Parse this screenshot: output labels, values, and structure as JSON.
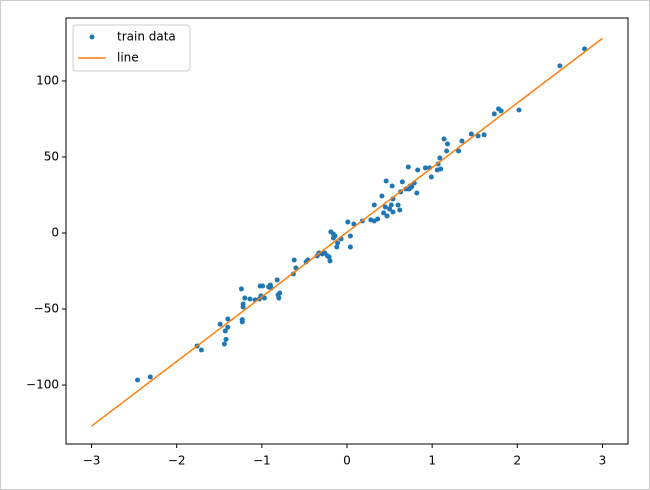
{
  "chart_data": {
    "type": "scatter",
    "series": [
      {
        "name": "train data",
        "type": "scatter",
        "color": "#1f77b4",
        "x": [
          -2.46,
          -2.31,
          -1.76,
          -1.71,
          -1.49,
          -1.44,
          -1.42,
          -1.43,
          -1.4,
          -1.4,
          -1.24,
          -1.23,
          -1.23,
          -1.22,
          -1.22,
          -1.2,
          -1.14,
          -1.08,
          -1.03,
          -1.02,
          -0.99,
          -1.01,
          -0.97,
          -0.92,
          -0.9,
          -0.89,
          -0.82,
          -0.81,
          -0.79,
          -0.8,
          -0.63,
          -0.62,
          -0.6,
          -0.48,
          -0.46,
          -0.35,
          -0.33,
          -0.29,
          -0.26,
          -0.23,
          -0.21,
          -0.2,
          -0.19,
          -0.16,
          -0.16,
          -0.14,
          -0.12,
          -0.11,
          -0.07,
          0.01,
          0.04,
          0.04,
          0.08,
          0.18,
          0.28,
          0.32,
          0.32,
          0.36,
          0.41,
          0.43,
          0.45,
          0.46,
          0.47,
          0.5,
          0.52,
          0.53,
          0.54,
          0.54,
          0.6,
          0.62,
          0.63,
          0.65,
          0.69,
          0.72,
          0.73,
          0.74,
          0.76,
          0.79,
          0.82,
          0.83,
          0.92,
          0.97,
          0.99,
          1.06,
          1.07,
          1.09,
          1.1,
          1.14,
          1.18,
          1.17,
          1.31,
          1.35,
          1.46,
          1.54,
          1.61,
          1.73,
          1.78,
          1.81,
          2.02,
          2.5,
          2.79
        ],
        "values": [
          -96.7,
          -94.7,
          -74.3,
          -77,
          -60,
          -73,
          -70,
          -64.5,
          -62,
          -56.6,
          -36.8,
          -57,
          -58.5,
          -48.7,
          -46.7,
          -42.8,
          -43.4,
          -44,
          -43.4,
          -34.9,
          -34.9,
          -41.4,
          -42.8,
          -35.5,
          -34.2,
          -36.2,
          -30.9,
          -40.8,
          -39.5,
          -42.8,
          -27,
          -17.8,
          -23,
          -19,
          -17.8,
          -15.1,
          -13.2,
          -13.8,
          -13.2,
          -15.1,
          -15.8,
          -18.4,
          0.7,
          -0.7,
          -3.3,
          -2,
          -9.2,
          -6.6,
          -3.9,
          7.2,
          -2,
          -9.2,
          5.9,
          7.9,
          8.6,
          7.9,
          18.4,
          9.2,
          24.3,
          13.2,
          17.1,
          34.2,
          11.2,
          15.8,
          18.4,
          30.9,
          22.4,
          13.8,
          18.4,
          15.1,
          27,
          33.6,
          28.9,
          43.4,
          28.9,
          30.9,
          30.3,
          32.9,
          26.3,
          41.4,
          42.8,
          42.8,
          36.8,
          41.4,
          45.4,
          49.3,
          42.1,
          61.8,
          58.6,
          53.9,
          53.9,
          60.5,
          65.1,
          63.8,
          64.5,
          78.3,
          81.6,
          80.3,
          80.9,
          109.9,
          121.1
        ]
      },
      {
        "name": "line",
        "type": "line",
        "color": "#ff7f0e",
        "x": [
          -3,
          3
        ],
        "values": [
          -127,
          128
        ]
      }
    ],
    "xlim": [
      -3.3,
      3.3
    ],
    "xticks": [
      {
        "value": -3,
        "label": "−3"
      },
      {
        "value": -2,
        "label": "−2"
      },
      {
        "value": -1,
        "label": "−1"
      },
      0,
      1,
      2,
      3
    ],
    "ylim": [
      -138.8,
      141.4
    ],
    "yticks": [
      {
        "value": -100,
        "label": "−100"
      },
      {
        "value": -50,
        "label": "−50"
      },
      0,
      50,
      100
    ],
    "grid": false,
    "legend": "upper left"
  }
}
